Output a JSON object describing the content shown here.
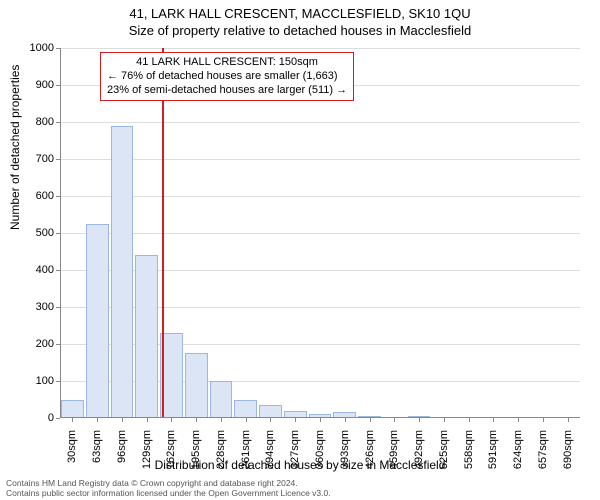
{
  "title_line1": "41, LARK HALL CRESCENT, MACCLESFIELD, SK10 1QU",
  "title_line2": "Size of property relative to detached houses in Macclesfield",
  "yaxis": {
    "label": "Number of detached properties",
    "min": 0,
    "max": 1000,
    "ticks": [
      0,
      100,
      200,
      300,
      400,
      500,
      600,
      700,
      800,
      900,
      1000
    ]
  },
  "xaxis": {
    "label": "Distribution of detached houses by size in Macclesfield",
    "tick_labels": [
      "30sqm",
      "63sqm",
      "96sqm",
      "129sqm",
      "162sqm",
      "195sqm",
      "228sqm",
      "261sqm",
      "294sqm",
      "327sqm",
      "360sqm",
      "393sqm",
      "426sqm",
      "459sqm",
      "492sqm",
      "525sqm",
      "558sqm",
      "591sqm",
      "624sqm",
      "657sqm",
      "690sqm"
    ]
  },
  "chart": {
    "type": "histogram",
    "bar_fill": "#dbe5f6",
    "bar_border": "#9bb7e0",
    "grid_color": "#dddddd",
    "axis_color": "#888888",
    "marker_color": "#d02020",
    "background": "#ffffff",
    "values": [
      50,
      525,
      790,
      440,
      230,
      175,
      100,
      50,
      35,
      20,
      10,
      15,
      5,
      0,
      2,
      0,
      0,
      0,
      0,
      0,
      0
    ],
    "marker_value_sqm": 150
  },
  "annotation": {
    "line1": "41 LARK HALL CRESCENT: 150sqm",
    "line2": "← 76% of detached houses are smaller (1,663)",
    "line3": "23% of semi-detached houses are larger (511) →"
  },
  "footer": {
    "line1": "Contains HM Land Registry data © Crown copyright and database right 2024.",
    "line2": "Contains public sector information licensed under the Open Government Licence v3.0."
  }
}
